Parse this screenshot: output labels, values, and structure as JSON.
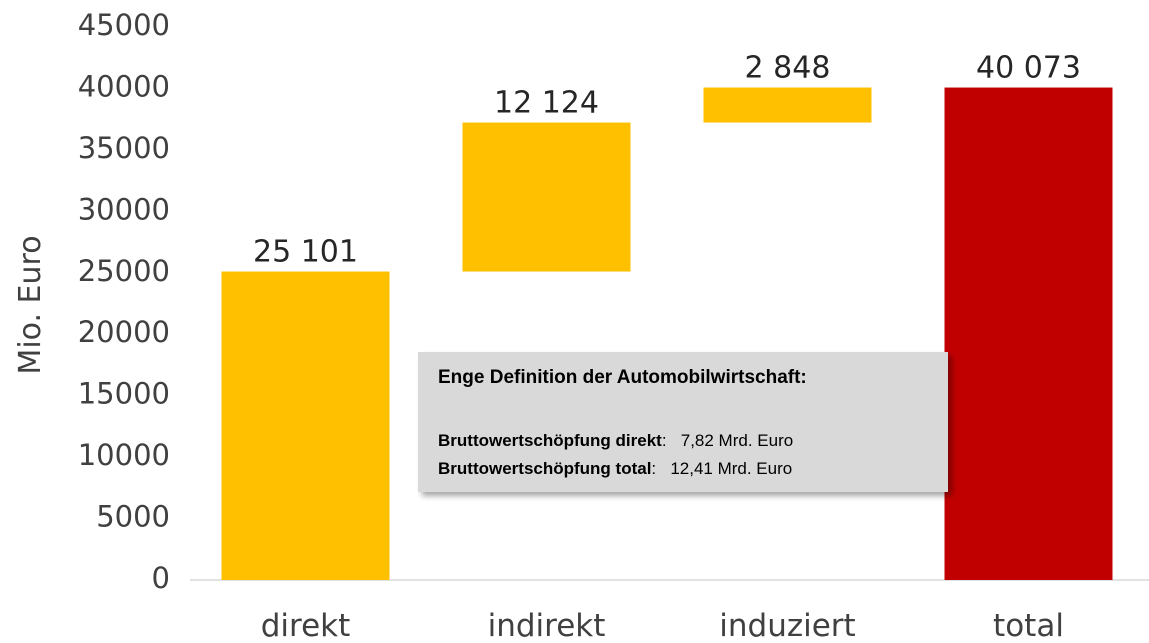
{
  "chart_data": {
    "type": "waterfall",
    "y_label": "Mio. Euro",
    "categories": [
      "direkt",
      "indirekt",
      "induziert",
      "total"
    ],
    "values": [
      25101,
      12124,
      2848,
      40073
    ],
    "value_labels": [
      "25 101",
      "12 124",
      "2 848",
      "40 073"
    ],
    "totals": [
      false,
      false,
      false,
      true
    ],
    "colors": [
      "#ffc000",
      "#ffc000",
      "#ffc000",
      "#c00000"
    ],
    "ylim": [
      0,
      45000
    ],
    "yticks": [
      0,
      5000,
      10000,
      15000,
      20000,
      25000,
      30000,
      35000,
      40000,
      45000
    ],
    "grid": false,
    "annotation": {
      "title": "Enge Definition der Automobilwirtschaft:",
      "lines": [
        {
          "label": "Bruttowertschöpfung direkt",
          "text": ":   7,82 Mrd. Euro"
        },
        {
          "label": "Bruttowertschöpfung total",
          "text": ":   12,41 Mrd. Euro"
        }
      ]
    }
  }
}
